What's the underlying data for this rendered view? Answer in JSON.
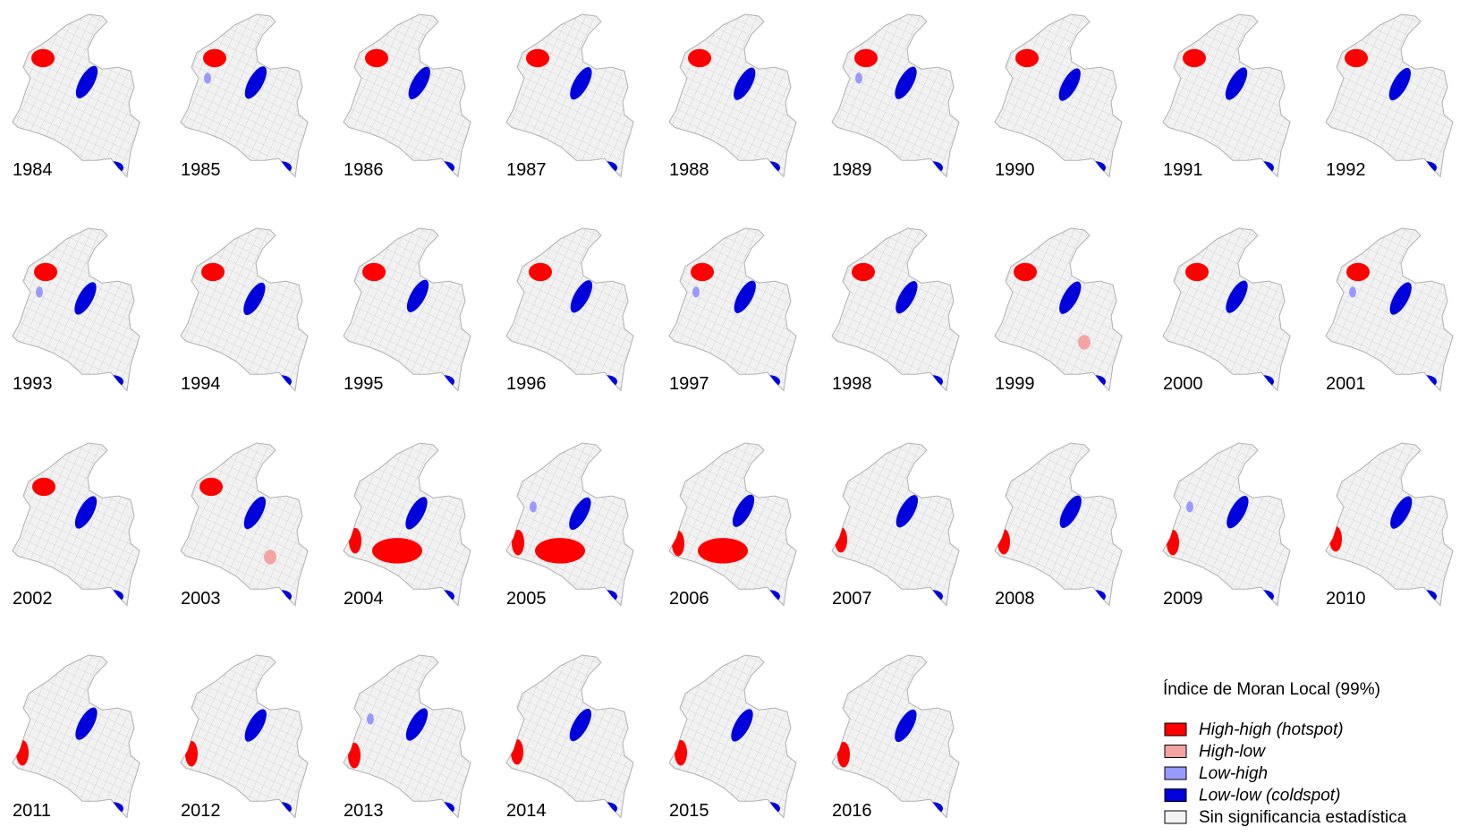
{
  "years": [
    "1984",
    "1985",
    "1986",
    "1987",
    "1988",
    "1989",
    "1990",
    "1991",
    "1992",
    "1993",
    "1994",
    "1995",
    "1996",
    "1997",
    "1998",
    "1999",
    "2000",
    "2001",
    "2002",
    "2003",
    "2004",
    "2005",
    "2006",
    "2007",
    "2008",
    "2009",
    "2010",
    "2011",
    "2012",
    "2013",
    "2014",
    "2015",
    "2016"
  ],
  "legend": {
    "title": "Índice de Moran Local (99%)",
    "items": [
      {
        "label": "High-high (hotspot)",
        "color": "#ff0000",
        "italic": true
      },
      {
        "label": "High-low",
        "color": "#f4a3a3",
        "italic": true
      },
      {
        "label": "Low-high",
        "color": "#9999ff",
        "italic": true
      },
      {
        "label": "Low-low (coldspot)",
        "color": "#0000dd",
        "italic": true
      },
      {
        "label": "Sin significancia estadística",
        "color": "#f2f2f2",
        "italic": false
      }
    ]
  }
}
